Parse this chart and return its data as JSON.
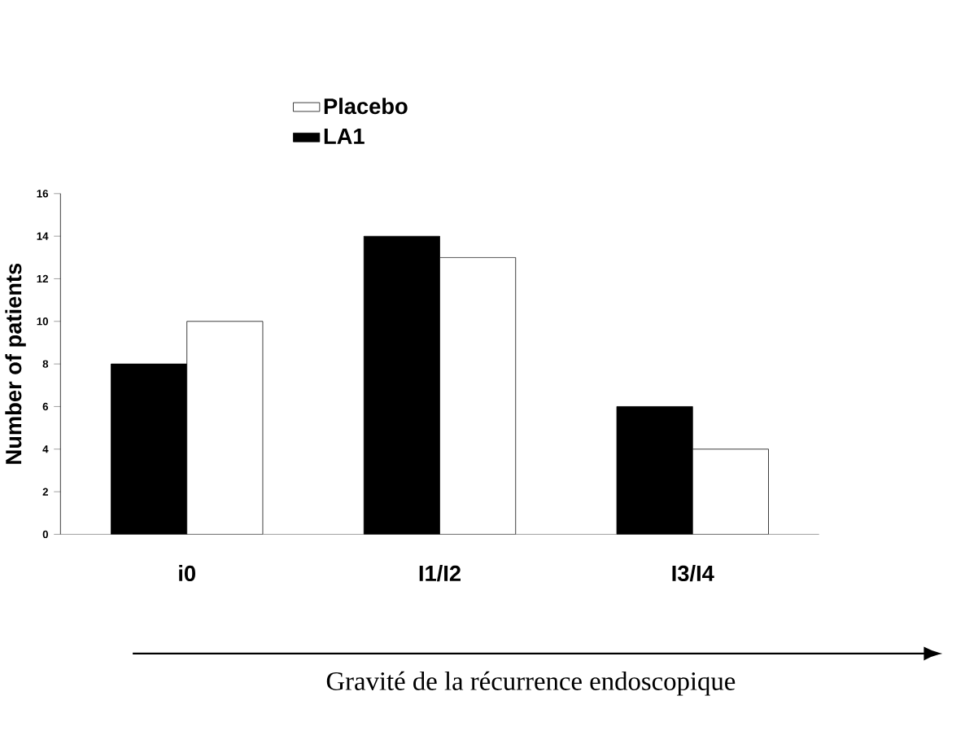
{
  "chart_data": {
    "type": "bar",
    "xlabel": "Gravité de la récurrence endoscopique",
    "ylabel": "Number of patients",
    "categories": [
      "i0",
      "I1/I2",
      "I3/I4"
    ],
    "series": [
      {
        "name": "LA1",
        "color": "#000000",
        "values": [
          8,
          14,
          6
        ]
      },
      {
        "name": "Placebo",
        "color": "#ffffff",
        "values": [
          10,
          13,
          4
        ]
      }
    ],
    "ylim": [
      0,
      16
    ],
    "yticks": [
      0,
      2,
      4,
      6,
      8,
      10,
      12,
      14,
      16
    ],
    "grid": false,
    "legend": "top"
  }
}
